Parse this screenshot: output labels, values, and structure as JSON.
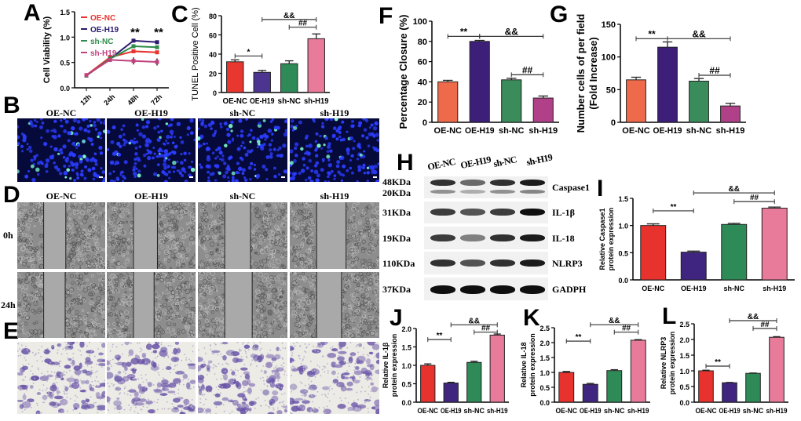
{
  "panel_letters": {
    "A": "A",
    "B": "B",
    "C": "C",
    "D": "D",
    "E": "E",
    "F": "F",
    "G": "G",
    "H": "H",
    "I": "I",
    "J": "J",
    "K": "K",
    "L": "L"
  },
  "groups": [
    "OE-NC",
    "OE-H19",
    "sh-NC",
    "sh-H19"
  ],
  "timepoints": [
    "0h",
    "24h"
  ],
  "blot": {
    "lanes": [
      "OE-NC",
      "OE-H19",
      "sh-NC",
      "sh-H19"
    ],
    "rows": [
      {
        "sizes": [
          "48KDa",
          "20KDa"
        ],
        "protein": "Caspase1",
        "intensity": [
          0.85,
          0.6,
          0.85,
          0.95
        ]
      },
      {
        "sizes": [
          "31KDa"
        ],
        "protein": "IL-1β",
        "intensity": [
          0.8,
          0.7,
          0.8,
          1.0
        ]
      },
      {
        "sizes": [
          "19KDa"
        ],
        "protein": "IL-18",
        "intensity": [
          0.8,
          0.5,
          0.85,
          0.95
        ]
      },
      {
        "sizes": [
          "110KDa"
        ],
        "protein": "NLRP3",
        "intensity": [
          0.85,
          0.7,
          0.85,
          0.95
        ]
      },
      {
        "sizes": [
          "37KDa"
        ],
        "protein": "GADPH",
        "intensity": [
          1,
          1,
          1,
          1
        ]
      }
    ]
  },
  "chart_data": [
    {
      "id": "A",
      "type": "line",
      "x": [
        "12h",
        "24h",
        "48h",
        "72h"
      ],
      "ylabel": "Cell Viability  (%)",
      "ylim": [
        0,
        1.5
      ],
      "yticks": [
        "0.0",
        "0.5",
        "1.0",
        "1.5"
      ],
      "series": [
        {
          "name": "OE-NC",
          "color": "#e8322d",
          "values": [
            0.25,
            0.6,
            0.72,
            0.7
          ],
          "err": [
            0.03,
            0.02,
            0.02,
            0.02
          ]
        },
        {
          "name": "OE-H19",
          "color": "#2a1a6e",
          "values": [
            0.24,
            0.57,
            0.93,
            0.9
          ],
          "err": [
            0.03,
            0.02,
            0.02,
            0.02
          ]
        },
        {
          "name": "sh-NC",
          "color": "#2e8b4a",
          "values": [
            0.24,
            0.57,
            0.82,
            0.8
          ],
          "err": [
            0.03,
            0.02,
            0.03,
            0.03
          ]
        },
        {
          "name": "sh-H19",
          "color": "#c0417f",
          "values": [
            0.25,
            0.55,
            0.53,
            0.51
          ],
          "err": [
            0.03,
            0.04,
            0.07,
            0.07
          ]
        }
      ],
      "annotations": [
        {
          "x": "48h",
          "text": "**"
        },
        {
          "x": "72h",
          "text": "**"
        }
      ]
    },
    {
      "id": "C",
      "type": "bar",
      "categories": [
        "OE-NC",
        "OE-H19",
        "sh-NC",
        "sh-H19"
      ],
      "values": [
        32,
        21,
        30,
        56
      ],
      "err": [
        2,
        2,
        3,
        5
      ],
      "colors": [
        "#e8372e",
        "#4b3590",
        "#2e8b57",
        "#e87a9a"
      ],
      "ylabel": "TUNEL Positive Cell (%)",
      "ylim": [
        0,
        80
      ],
      "yticks": [
        "0",
        "20",
        "40",
        "60",
        "80"
      ],
      "sig": [
        {
          "from": 0,
          "to": 1,
          "y": 38,
          "text": "*"
        },
        {
          "from": 1,
          "to": 3,
          "y": 76,
          "text": "&&"
        },
        {
          "from": 2,
          "to": 3,
          "y": 68,
          "text": "##"
        }
      ]
    },
    {
      "id": "F",
      "type": "bar",
      "categories": [
        "OE-NC",
        "OE-H19",
        "sh-NC",
        "sh-H19"
      ],
      "values": [
        40,
        80,
        42,
        24
      ],
      "err": [
        1.5,
        1,
        1.5,
        2
      ],
      "colors": [
        "#ef6a4a",
        "#3d1f7a",
        "#3a8c5a",
        "#b04088"
      ],
      "ylabel": "Percentage Closure (%)",
      "ylim": [
        0,
        100
      ],
      "yticks": [
        "0",
        "20",
        "40",
        "60",
        "80",
        "100"
      ],
      "sig": [
        {
          "from": 0,
          "to": 1,
          "y": 85,
          "text": "**"
        },
        {
          "from": 1,
          "to": 3,
          "y": 85,
          "text": "&&"
        },
        {
          "from": 2,
          "to": 3,
          "y": 47,
          "text": "##"
        }
      ]
    },
    {
      "id": "G",
      "type": "bar",
      "categories": [
        "OE-NC",
        "OE-H19",
        "sh-NC",
        "sh-H19"
      ],
      "values": [
        65,
        115,
        63,
        25
      ],
      "err": [
        4,
        8,
        4,
        4
      ],
      "colors": [
        "#ef6a4a",
        "#3d1f7a",
        "#3a8c5a",
        "#b04088"
      ],
      "ylabel": "Number cells of per field",
      "ylabel2": "(Fold Increase)",
      "ylim": [
        0,
        150
      ],
      "yticks": [
        "0",
        "50",
        "100",
        "150"
      ],
      "sig": [
        {
          "from": 0,
          "to": 1,
          "y": 128,
          "text": "**"
        },
        {
          "from": 1,
          "to": 3,
          "y": 128,
          "text": "&&"
        },
        {
          "from": 2,
          "to": 3,
          "y": 72,
          "text": "##"
        }
      ]
    },
    {
      "id": "I",
      "type": "bar",
      "categories": [
        "OE-NC",
        "OE-H19",
        "sh-NC",
        "sh-H19"
      ],
      "values": [
        1.0,
        0.51,
        1.02,
        1.32
      ],
      "err": [
        0.03,
        0.02,
        0.02,
        0.02
      ],
      "colors": [
        "#e8322d",
        "#3f2580",
        "#2e8b57",
        "#e87a9a"
      ],
      "ylabel": "Relative Caspase1",
      "ylabel2": "protein expression",
      "ylim": [
        0,
        1.5
      ],
      "yticks": [
        "0.0",
        "0.5",
        "1.0",
        "1.5"
      ],
      "sig": [
        {
          "from": 0,
          "to": 1,
          "y": 1.27,
          "text": "**"
        },
        {
          "from": 1,
          "to": 3,
          "y": 1.6,
          "text": "&&"
        },
        {
          "from": 2,
          "to": 3,
          "y": 1.44,
          "text": "##"
        }
      ]
    },
    {
      "id": "J",
      "type": "bar",
      "categories": [
        "OE-NC",
        "OE-H19",
        "sh-NC",
        "sh-H19"
      ],
      "values": [
        1.0,
        0.52,
        1.08,
        1.82
      ],
      "err": [
        0.04,
        0.02,
        0.03,
        0.03
      ],
      "colors": [
        "#e8322d",
        "#3f2580",
        "#2e8b57",
        "#e87a9a"
      ],
      "ylabel": "Relative IL-1β",
      "ylabel2": "protein expression",
      "ylim": [
        0,
        2.0
      ],
      "yticks": [
        "0.0",
        "0.5",
        "1.0",
        "1.5",
        "2.0"
      ],
      "sig": [
        {
          "from": 0,
          "to": 1,
          "y": 1.7,
          "text": "**"
        },
        {
          "from": 1,
          "to": 3,
          "y": 2.1,
          "text": "&&"
        },
        {
          "from": 2,
          "to": 3,
          "y": 1.9,
          "text": "##"
        }
      ]
    },
    {
      "id": "K",
      "type": "bar",
      "categories": [
        "OE-NC",
        "OE-H19",
        "sh-NC",
        "sh-H19"
      ],
      "values": [
        1.0,
        0.6,
        1.06,
        2.08
      ],
      "err": [
        0.03,
        0.03,
        0.03,
        0.02
      ],
      "colors": [
        "#e8322d",
        "#3f2580",
        "#2e8b57",
        "#e87a9a"
      ],
      "ylabel": "Relative IL-18",
      "ylabel2": "protein expression",
      "ylim": [
        0,
        2.5
      ],
      "yticks": [
        "0.0",
        "0.5",
        "1.0",
        "1.5",
        "2.0",
        "2.5"
      ],
      "sig": [
        {
          "from": 0,
          "to": 1,
          "y": 2.05,
          "text": "**"
        },
        {
          "from": 1,
          "to": 3,
          "y": 2.6,
          "text": "&&"
        },
        {
          "from": 2,
          "to": 3,
          "y": 2.35,
          "text": "##"
        }
      ]
    },
    {
      "id": "L",
      "type": "bar",
      "categories": [
        "OE-NC",
        "OE-H19",
        "sh-NC",
        "sh-H19"
      ],
      "values": [
        1.0,
        0.62,
        0.92,
        2.07
      ],
      "err": [
        0.02,
        0.01,
        0.01,
        0.02
      ],
      "colors": [
        "#e8322d",
        "#3f2580",
        "#2e8b57",
        "#e87a9a"
      ],
      "ylabel": "Relative NLRP3",
      "ylabel2": "protein expression",
      "ylim": [
        0,
        2.5
      ],
      "yticks": [
        "0.0",
        "0.5",
        "1.0",
        "1.5",
        "2.0",
        "2.5"
      ],
      "sig": [
        {
          "from": 0,
          "to": 1,
          "y": 1.15,
          "text": "**"
        },
        {
          "from": 1,
          "to": 3,
          "y": 2.6,
          "text": "&&"
        },
        {
          "from": 2,
          "to": 3,
          "y": 2.35,
          "text": "##"
        }
      ]
    }
  ]
}
